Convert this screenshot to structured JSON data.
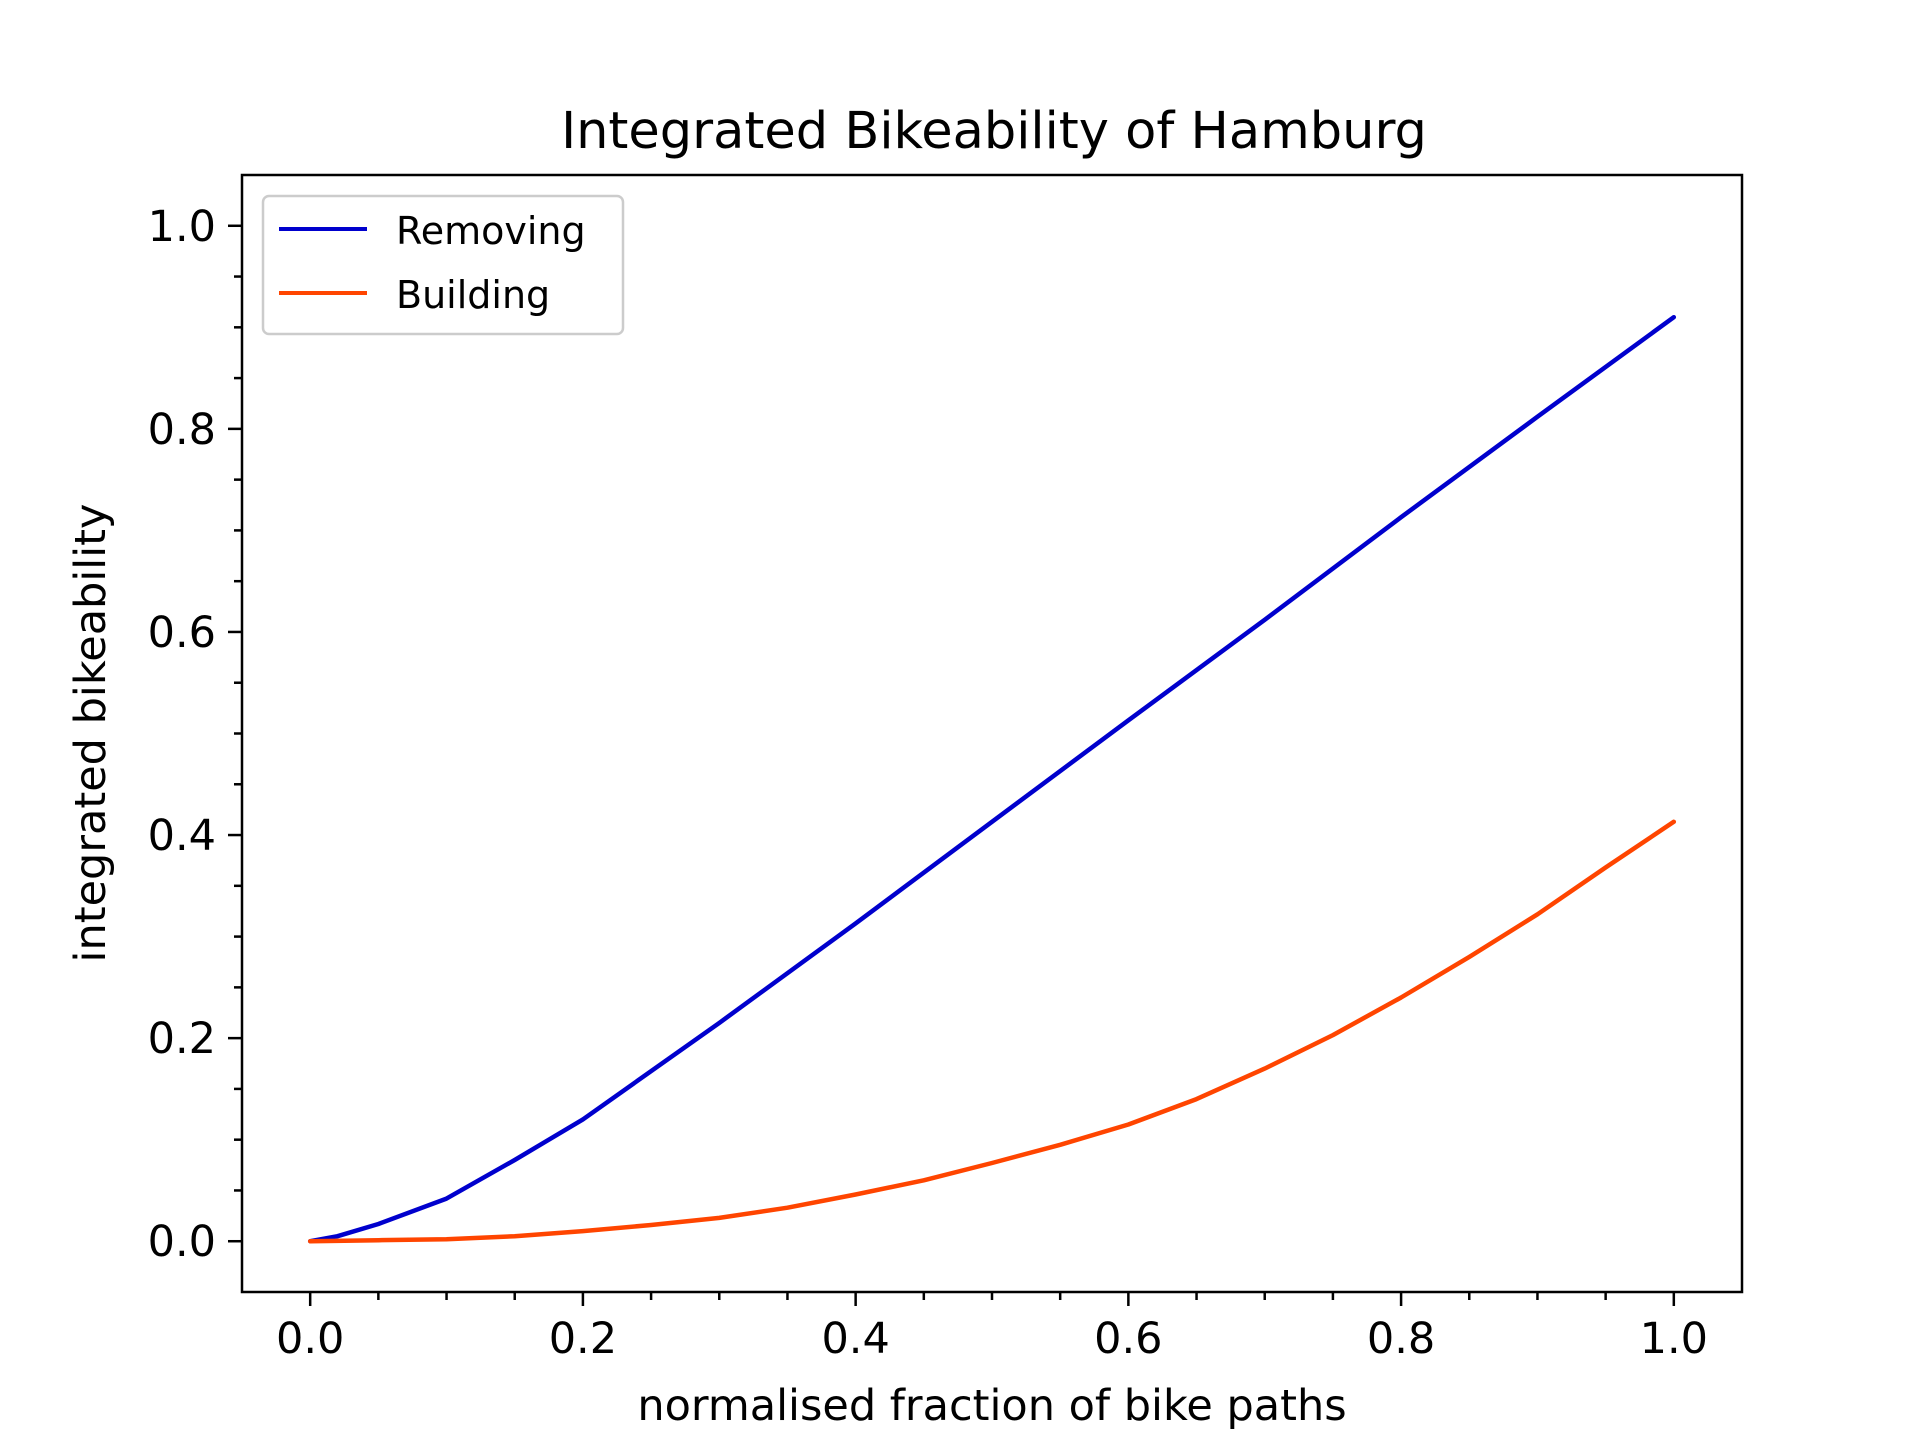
{
  "chart_data": {
    "type": "line",
    "title": "Integrated Bikeability of Hamburg",
    "xlabel": "normalised fraction of bike paths",
    "ylabel": "integrated bikeability",
    "xlim": [
      -0.05,
      1.05
    ],
    "ylim": [
      -0.05,
      1.05
    ],
    "x_ticks": [
      "0.0",
      "0.2",
      "0.4",
      "0.6",
      "0.8",
      "1.0"
    ],
    "y_ticks": [
      "0.0",
      "0.2",
      "0.4",
      "0.6",
      "0.8",
      "1.0"
    ],
    "grid": false,
    "legend_position": "top-left",
    "series": [
      {
        "name": "Removing",
        "color": "#0000cd",
        "x": [
          0.0,
          0.02,
          0.05,
          0.1,
          0.15,
          0.2,
          0.3,
          0.4,
          0.5,
          0.6,
          0.7,
          0.8,
          0.9,
          1.0
        ],
        "y": [
          0.0,
          0.005,
          0.017,
          0.042,
          0.08,
          0.12,
          0.215,
          0.313,
          0.413,
          0.513,
          0.612,
          0.713,
          0.812,
          0.91
        ]
      },
      {
        "name": "Building",
        "color": "#ff4500",
        "x": [
          0.0,
          0.05,
          0.1,
          0.15,
          0.2,
          0.25,
          0.3,
          0.35,
          0.4,
          0.45,
          0.5,
          0.55,
          0.6,
          0.65,
          0.7,
          0.75,
          0.8,
          0.85,
          0.9,
          0.95,
          1.0
        ],
        "y": [
          0.0,
          0.001,
          0.002,
          0.005,
          0.01,
          0.016,
          0.023,
          0.033,
          0.046,
          0.06,
          0.077,
          0.095,
          0.115,
          0.14,
          0.17,
          0.203,
          0.24,
          0.28,
          0.322,
          0.368,
          0.413
        ]
      }
    ]
  }
}
